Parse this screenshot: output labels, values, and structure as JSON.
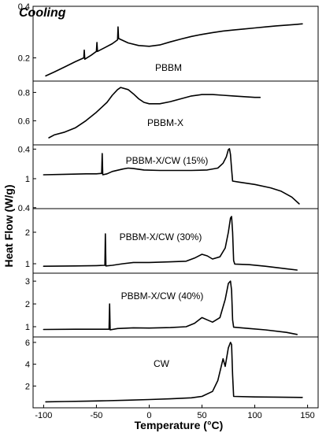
{
  "chart_data": {
    "type": "line",
    "title": "Cooling",
    "xlabel": "Temperature (°C)",
    "ylabel": "Heat Flow (W/g)",
    "xlim": [
      -110,
      160
    ],
    "x_ticks": [
      -100,
      -50,
      0,
      50,
      100,
      150
    ],
    "grid": false,
    "panels": [
      {
        "name": "PBBM",
        "ylim": [
          0.11,
          0.4
        ],
        "y_ticks": [
          0.2,
          0.4
        ],
        "points": [
          [
            -98,
            0.13
          ],
          [
            -90,
            0.145
          ],
          [
            -80,
            0.165
          ],
          [
            -70,
            0.185
          ],
          [
            -62,
            0.2
          ],
          [
            -61.5,
            0.23
          ],
          [
            -61,
            0.195
          ],
          [
            -55,
            0.21
          ],
          [
            -50,
            0.225
          ],
          [
            -49.5,
            0.26
          ],
          [
            -49,
            0.225
          ],
          [
            -42,
            0.24
          ],
          [
            -35,
            0.255
          ],
          [
            -30,
            0.27
          ],
          [
            -29.5,
            0.32
          ],
          [
            -29,
            0.275
          ],
          [
            -20,
            0.258
          ],
          [
            -10,
            0.248
          ],
          [
            0,
            0.245
          ],
          [
            10,
            0.25
          ],
          [
            20,
            0.262
          ],
          [
            30,
            0.273
          ],
          [
            40,
            0.283
          ],
          [
            50,
            0.291
          ],
          [
            60,
            0.298
          ],
          [
            70,
            0.304
          ],
          [
            80,
            0.308
          ],
          [
            90,
            0.312
          ],
          [
            100,
            0.316
          ],
          [
            110,
            0.32
          ],
          [
            120,
            0.324
          ],
          [
            130,
            0.327
          ],
          [
            140,
            0.33
          ],
          [
            145,
            0.332
          ]
        ]
      },
      {
        "name": "PBBM-X",
        "ylim": [
          0.43,
          0.88
        ],
        "y_ticks": [
          0.4,
          0.6,
          0.8
        ],
        "points": [
          [
            -95,
            0.48
          ],
          [
            -90,
            0.5
          ],
          [
            -80,
            0.52
          ],
          [
            -70,
            0.55
          ],
          [
            -60,
            0.6
          ],
          [
            -50,
            0.66
          ],
          [
            -40,
            0.73
          ],
          [
            -35,
            0.78
          ],
          [
            -30,
            0.82
          ],
          [
            -27,
            0.835
          ],
          [
            -20,
            0.82
          ],
          [
            -15,
            0.79
          ],
          [
            -10,
            0.755
          ],
          [
            -5,
            0.73
          ],
          [
            0,
            0.72
          ],
          [
            10,
            0.72
          ],
          [
            20,
            0.735
          ],
          [
            30,
            0.755
          ],
          [
            40,
            0.775
          ],
          [
            50,
            0.785
          ],
          [
            60,
            0.785
          ],
          [
            70,
            0.78
          ],
          [
            80,
            0.775
          ],
          [
            90,
            0.77
          ],
          [
            100,
            0.765
          ],
          [
            105,
            0.765
          ]
        ]
      },
      {
        "name": "PBBM-X/CW (15%)",
        "ylim": [
          0.38,
          1.7
        ],
        "y_ticks": [
          0.4,
          1
        ],
        "points": [
          [
            -100,
            1.08
          ],
          [
            -80,
            1.09
          ],
          [
            -60,
            1.1
          ],
          [
            -50,
            1.1
          ],
          [
            -45,
            1.11
          ],
          [
            -44.5,
            1.52
          ],
          [
            -44,
            1.08
          ],
          [
            -40,
            1.1
          ],
          [
            -35,
            1.15
          ],
          [
            -25,
            1.2
          ],
          [
            -20,
            1.22
          ],
          [
            -15,
            1.21
          ],
          [
            -5,
            1.18
          ],
          [
            10,
            1.17
          ],
          [
            25,
            1.17
          ],
          [
            40,
            1.17
          ],
          [
            55,
            1.18
          ],
          [
            65,
            1.22
          ],
          [
            70,
            1.32
          ],
          [
            73,
            1.45
          ],
          [
            75,
            1.6
          ],
          [
            76,
            1.62
          ],
          [
            77,
            1.5
          ],
          [
            78,
            1.2
          ],
          [
            79,
            0.95
          ],
          [
            85,
            0.93
          ],
          [
            100,
            0.88
          ],
          [
            115,
            0.81
          ],
          [
            125,
            0.74
          ],
          [
            135,
            0.62
          ],
          [
            142,
            0.48
          ]
        ]
      },
      {
        "name": "PBBM-X/CW (30%)",
        "ylim": [
          0.7,
          2.75
        ],
        "y_ticks": [
          1,
          2
        ],
        "points": [
          [
            -100,
            0.92
          ],
          [
            -70,
            0.93
          ],
          [
            -50,
            0.94
          ],
          [
            -42,
            0.95
          ],
          [
            -41.5,
            1.95
          ],
          [
            -41,
            0.93
          ],
          [
            -35,
            0.95
          ],
          [
            -25,
            1.0
          ],
          [
            -15,
            1.04
          ],
          [
            0,
            1.04
          ],
          [
            20,
            1.06
          ],
          [
            35,
            1.08
          ],
          [
            43,
            1.18
          ],
          [
            50,
            1.3
          ],
          [
            55,
            1.25
          ],
          [
            60,
            1.15
          ],
          [
            67,
            1.22
          ],
          [
            72,
            1.5
          ],
          [
            75,
            2.0
          ],
          [
            77,
            2.45
          ],
          [
            78,
            2.5
          ],
          [
            79,
            2.0
          ],
          [
            80,
            1.1
          ],
          [
            81,
            0.99
          ],
          [
            95,
            0.97
          ],
          [
            110,
            0.92
          ],
          [
            130,
            0.84
          ],
          [
            140,
            0.8
          ]
        ]
      },
      {
        "name": "PBBM-X/CW (40%)",
        "ylim": [
          0.55,
          3.35
        ],
        "y_ticks": [
          1,
          2,
          3
        ],
        "points": [
          [
            -100,
            0.88
          ],
          [
            -70,
            0.89
          ],
          [
            -50,
            0.89
          ],
          [
            -38,
            0.89
          ],
          [
            -37.5,
            2.0
          ],
          [
            -37,
            0.86
          ],
          [
            -30,
            0.92
          ],
          [
            -15,
            0.95
          ],
          [
            0,
            0.94
          ],
          [
            20,
            0.96
          ],
          [
            35,
            1.0
          ],
          [
            43,
            1.15
          ],
          [
            50,
            1.4
          ],
          [
            55,
            1.3
          ],
          [
            60,
            1.2
          ],
          [
            67,
            1.4
          ],
          [
            72,
            2.2
          ],
          [
            75,
            2.9
          ],
          [
            77,
            3.0
          ],
          [
            78,
            2.6
          ],
          [
            79,
            1.3
          ],
          [
            80,
            0.98
          ],
          [
            95,
            0.92
          ],
          [
            110,
            0.86
          ],
          [
            130,
            0.75
          ],
          [
            140,
            0.66
          ]
        ]
      },
      {
        "name": "CW",
        "ylim": [
          0.0,
          6.5
        ],
        "y_ticks": [
          2,
          4,
          6
        ],
        "points": [
          [
            -98,
            0.55
          ],
          [
            -80,
            0.58
          ],
          [
            -60,
            0.61
          ],
          [
            -40,
            0.65
          ],
          [
            -20,
            0.7
          ],
          [
            0,
            0.76
          ],
          [
            20,
            0.82
          ],
          [
            40,
            0.92
          ],
          [
            50,
            1.05
          ],
          [
            60,
            1.5
          ],
          [
            65,
            2.5
          ],
          [
            70,
            4.5
          ],
          [
            72,
            3.8
          ],
          [
            75,
            5.5
          ],
          [
            77,
            6.0
          ],
          [
            78,
            5.8
          ],
          [
            79,
            3.0
          ],
          [
            80,
            1.05
          ],
          [
            100,
            1.0
          ],
          [
            120,
            0.98
          ],
          [
            145,
            0.95
          ]
        ]
      }
    ]
  }
}
